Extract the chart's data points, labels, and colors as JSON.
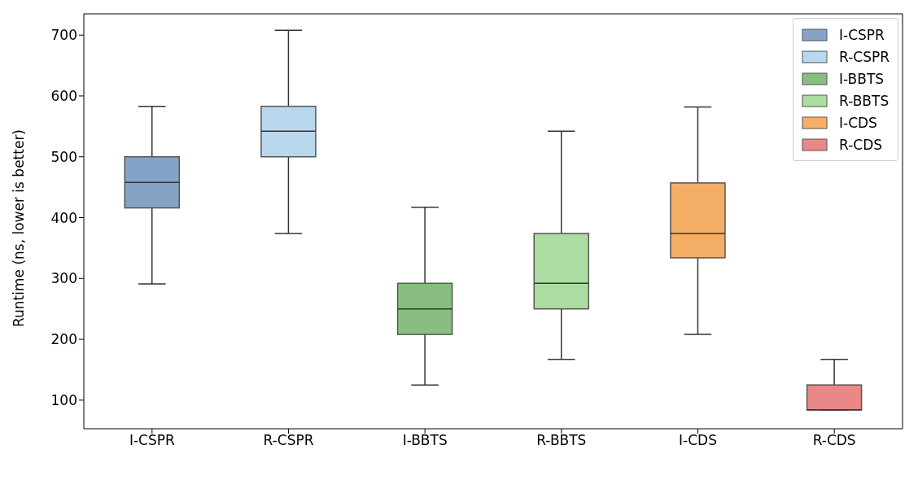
{
  "chart_data": {
    "type": "box",
    "ylabel": "Runtime (ns, lower is better)",
    "categories": [
      "I-CSPR",
      "R-CSPR",
      "I-BBTS",
      "R-BBTS",
      "I-CDS",
      "R-CDS"
    ],
    "series": [
      {
        "name": "I-CSPR",
        "color": "#84a3c6",
        "boxes": [
          {
            "low": 291,
            "q1": 416,
            "median": 458,
            "q3": 500,
            "high": 583
          },
          null,
          null,
          null,
          null,
          null
        ]
      },
      {
        "name": "R-CSPR",
        "color": "#b9d8ee",
        "boxes": [
          null,
          {
            "low": 374,
            "q1": 500,
            "median": 542,
            "q3": 583,
            "high": 708
          },
          null,
          null,
          null,
          null
        ]
      },
      {
        "name": "I-BBTS",
        "color": "#88bf80",
        "boxes": [
          null,
          null,
          {
            "low": 125,
            "q1": 208,
            "median": 250,
            "q3": 292,
            "high": 417
          },
          null,
          null,
          null
        ]
      },
      {
        "name": "R-BBTS",
        "color": "#acdda0",
        "boxes": [
          null,
          null,
          null,
          {
            "low": 167,
            "q1": 250,
            "median": 292,
            "q3": 374,
            "high": 542
          },
          null,
          null
        ]
      },
      {
        "name": "I-CDS",
        "color": "#f5ae66",
        "boxes": [
          null,
          null,
          null,
          null,
          {
            "low": 208,
            "q1": 334,
            "median": 374,
            "q3": 457,
            "high": 582
          },
          null
        ]
      },
      {
        "name": "R-CDS",
        "color": "#ea8787",
        "boxes": [
          null,
          null,
          null,
          null,
          null,
          {
            "low": 84,
            "q1": 84,
            "median": 84,
            "q3": 125,
            "high": 167
          }
        ]
      }
    ],
    "ylim": [
      53,
      735
    ],
    "yticks": [
      100,
      200,
      300,
      400,
      500,
      600,
      700
    ],
    "grid": false,
    "legend": "top right"
  }
}
